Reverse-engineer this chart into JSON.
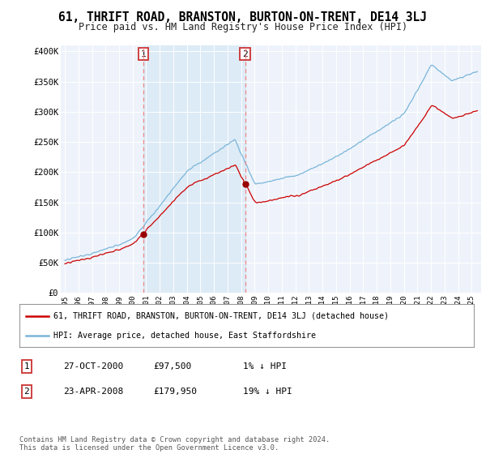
{
  "title": "61, THRIFT ROAD, BRANSTON, BURTON-ON-TRENT, DE14 3LJ",
  "subtitle": "Price paid vs. HM Land Registry's House Price Index (HPI)",
  "sale1_date": "27-OCT-2000",
  "sale1_price": 97500,
  "sale1_label": "1",
  "sale2_date": "23-APR-2008",
  "sale2_price": 179950,
  "sale2_label": "2",
  "legend_line1": "61, THRIFT ROAD, BRANSTON, BURTON-ON-TRENT, DE14 3LJ (detached house)",
  "legend_line2": "HPI: Average price, detached house, East Staffordshire",
  "table_row1": [
    "1",
    "27-OCT-2000",
    "£97,500",
    "1% ↓ HPI"
  ],
  "table_row2": [
    "2",
    "23-APR-2008",
    "£179,950",
    "19% ↓ HPI"
  ],
  "footer": "Contains HM Land Registry data © Crown copyright and database right 2024.\nThis data is licensed under the Open Government Licence v3.0.",
  "hpi_color": "#7ab5d9",
  "hpi_fill_color": "#d6e8f5",
  "price_color": "#cc0000",
  "marker_color": "#990000",
  "vline_color": "#ee8888",
  "background_color": "#ffffff",
  "plot_bg_color": "#eef3fb",
  "ylim": [
    0,
    410000
  ],
  "yticks": [
    0,
    50000,
    100000,
    150000,
    200000,
    250000,
    300000,
    350000,
    400000
  ],
  "ytick_labels": [
    "£0",
    "£50K",
    "£100K",
    "£150K",
    "£200K",
    "£250K",
    "£300K",
    "£350K",
    "£400K"
  ],
  "xlim_start": 1994.7,
  "xlim_end": 2025.7,
  "t1": 2000.79,
  "t2": 2008.29,
  "sale1_price_val": 97500,
  "sale2_price_val": 179950
}
